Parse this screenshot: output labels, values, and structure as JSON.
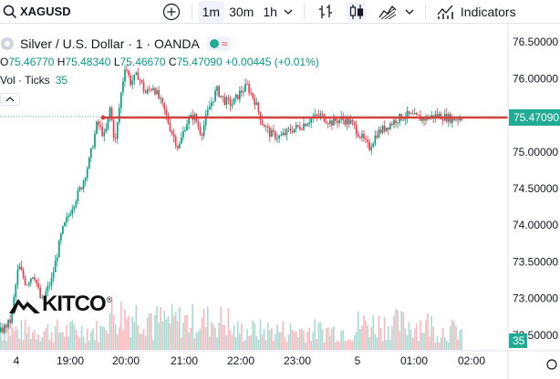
{
  "toolbar": {
    "symbol": "XAGUSD",
    "intervals": [
      "1m",
      "30m",
      "1h"
    ],
    "active_interval": "1m",
    "indicators_label": "Indicators"
  },
  "legend": {
    "title": "Silver / U.S. Dollar · 1 · OANDA",
    "open_label": "O",
    "open": "75.46770",
    "high_label": "H",
    "high": "75.48340",
    "low_label": "L",
    "low": "75.46670",
    "close_label": "C",
    "close": "75.47090",
    "change": "+0.00445 (+0.01%)",
    "vol_label": "Vol · Ticks",
    "vol_value": "35"
  },
  "price_axis": {
    "ticks": [
      "76.50000",
      "76.00000",
      "75.50000",
      "75.00000",
      "74.50000",
      "74.00000",
      "73.50000",
      "73.00000",
      "72.50000"
    ],
    "current_price": "75.47090"
  },
  "time_axis": {
    "ticks": [
      "4",
      "19:00",
      "20:00",
      "21:00",
      "22:00",
      "23:00",
      "5",
      "01:00",
      "02:00"
    ]
  },
  "volume_badge": "35",
  "logo": {
    "text": "KITCO",
    "registered": "®"
  },
  "colors": {
    "up": "#089981",
    "down": "#f23645",
    "line": "#e53935",
    "price_badge": "#22ab94"
  },
  "chart_data": {
    "type": "candlestick",
    "ylim": [
      72.3,
      76.7
    ],
    "horizontal_line": 75.47,
    "path": [
      [
        0.0,
        72.55
      ],
      [
        0.02,
        72.7
      ],
      [
        0.035,
        73.45
      ],
      [
        0.05,
        73.2
      ],
      [
        0.065,
        73.35
      ],
      [
        0.08,
        72.95
      ],
      [
        0.1,
        73.25
      ],
      [
        0.12,
        73.9
      ],
      [
        0.14,
        74.25
      ],
      [
        0.16,
        74.55
      ],
      [
        0.175,
        74.9
      ],
      [
        0.19,
        75.4
      ],
      [
        0.205,
        75.2
      ],
      [
        0.215,
        75.6
      ],
      [
        0.225,
        75.1
      ],
      [
        0.235,
        75.7
      ],
      [
        0.245,
        76.2
      ],
      [
        0.255,
        75.95
      ],
      [
        0.27,
        76.05
      ],
      [
        0.285,
        75.8
      ],
      [
        0.3,
        75.9
      ],
      [
        0.32,
        75.6
      ],
      [
        0.335,
        75.3
      ],
      [
        0.35,
        75.05
      ],
      [
        0.365,
        75.4
      ],
      [
        0.38,
        75.5
      ],
      [
        0.395,
        75.25
      ],
      [
        0.41,
        75.6
      ],
      [
        0.425,
        75.85
      ],
      [
        0.44,
        75.7
      ],
      [
        0.455,
        75.65
      ],
      [
        0.47,
        75.8
      ],
      [
        0.485,
        75.9
      ],
      [
        0.5,
        75.7
      ],
      [
        0.515,
        75.4
      ],
      [
        0.53,
        75.25
      ],
      [
        0.55,
        75.2
      ],
      [
        0.57,
        75.3
      ],
      [
        0.59,
        75.35
      ],
      [
        0.61,
        75.45
      ],
      [
        0.63,
        75.5
      ],
      [
        0.65,
        75.4
      ],
      [
        0.67,
        75.45
      ],
      [
        0.69,
        75.4
      ],
      [
        0.71,
        75.2
      ],
      [
        0.725,
        75.05
      ],
      [
        0.74,
        75.25
      ],
      [
        0.76,
        75.35
      ],
      [
        0.78,
        75.45
      ],
      [
        0.8,
        75.5
      ],
      [
        0.83,
        75.45
      ],
      [
        0.86,
        75.5
      ],
      [
        0.89,
        75.45
      ],
      [
        0.91,
        75.47
      ]
    ]
  }
}
